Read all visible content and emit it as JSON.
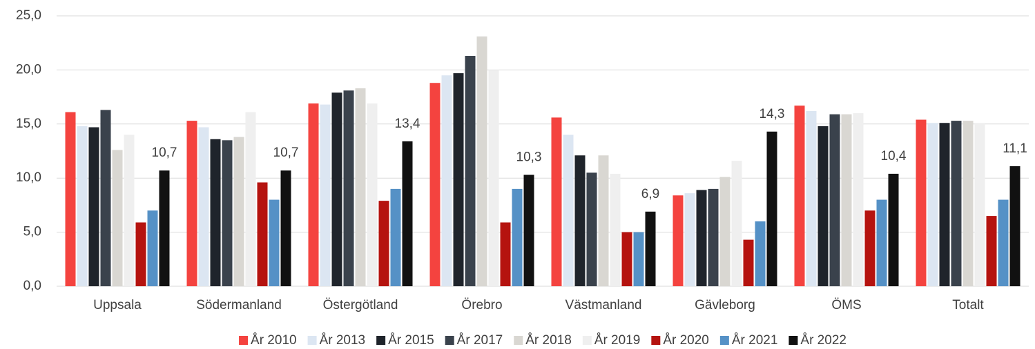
{
  "chart_data": {
    "type": "bar",
    "categories": [
      "Uppsala",
      "Södermanland",
      "Östergötland",
      "Örebro",
      "Västmanland",
      "Gävleborg",
      "ÖMS",
      "Totalt"
    ],
    "series": [
      {
        "name": "År 2010",
        "color": "#f4433f",
        "values": [
          16.1,
          15.3,
          16.9,
          18.8,
          15.6,
          8.4,
          16.7,
          15.4
        ]
      },
      {
        "name": "År 2013",
        "color": "#dce6f2",
        "values": [
          14.8,
          14.7,
          16.8,
          19.5,
          14.0,
          8.6,
          16.2,
          15.1
        ]
      },
      {
        "name": "År 2015",
        "color": "#1f242b",
        "values": [
          14.7,
          13.6,
          17.9,
          19.7,
          12.1,
          8.9,
          14.8,
          15.1
        ]
      },
      {
        "name": "År 2017",
        "color": "#3a424c",
        "values": [
          16.3,
          13.5,
          18.1,
          21.3,
          10.5,
          9.0,
          15.9,
          15.3
        ]
      },
      {
        "name": "År 2018",
        "color": "#d9d7d2",
        "values": [
          12.6,
          13.8,
          18.3,
          23.1,
          12.1,
          10.1,
          15.9,
          15.3
        ]
      },
      {
        "name": "År 2019",
        "color": "#efefef",
        "values": [
          14.0,
          16.1,
          16.9,
          20.0,
          10.4,
          11.6,
          16.0,
          15.1
        ]
      },
      {
        "name": "År 2020",
        "color": "#b5130f",
        "values": [
          5.9,
          9.6,
          7.9,
          5.9,
          5.0,
          4.3,
          7.0,
          6.5
        ]
      },
      {
        "name": "År 2021",
        "color": "#5591c6",
        "values": [
          7.0,
          8.0,
          9.0,
          9.0,
          5.0,
          6.0,
          8.0,
          8.0
        ]
      },
      {
        "name": "År 2022",
        "color": "#111111",
        "values": [
          10.7,
          10.7,
          13.4,
          10.3,
          6.9,
          14.3,
          10.4,
          11.1
        ],
        "value_labels": [
          "10,7",
          "10,7",
          "13,4",
          "10,3",
          "6,9",
          "14,3",
          "10,4",
          "11,1"
        ]
      }
    ],
    "ylim": [
      0,
      25
    ],
    "yticks": [
      {
        "value": 0,
        "label": "0,0"
      },
      {
        "value": 5,
        "label": "5,0"
      },
      {
        "value": 10,
        "label": "10,0"
      },
      {
        "value": 15,
        "label": "15,0"
      },
      {
        "value": 20,
        "label": "20,0"
      },
      {
        "value": 25,
        "label": "25,0"
      }
    ],
    "grid": true,
    "legend": "bottom"
  }
}
